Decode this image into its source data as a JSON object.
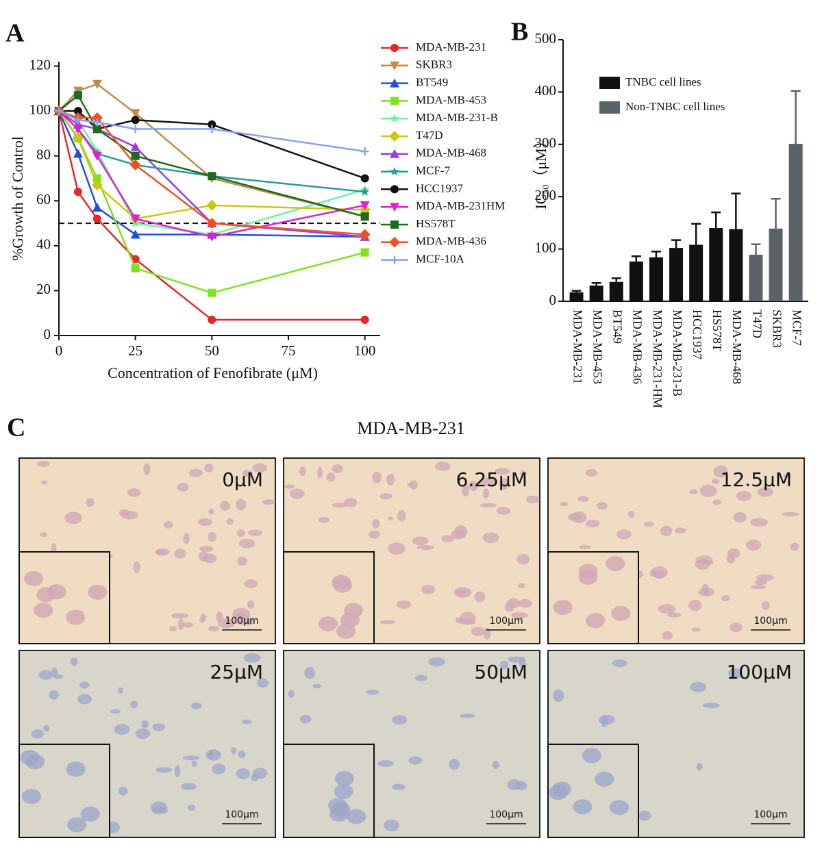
{
  "chart_data": [
    {
      "type": "line",
      "panel_label": "A",
      "x_label": "Concentration of Fenofibrate (μM)",
      "y_label": "%Growth of Control",
      "x": [
        0,
        6.25,
        12.5,
        25,
        50,
        100
      ],
      "xlim": [
        0,
        105
      ],
      "xticks": [
        0,
        25,
        50,
        75,
        100
      ],
      "ylim": [
        0,
        122
      ],
      "yticks": [
        0,
        20,
        40,
        60,
        80,
        100,
        120
      ],
      "reference_line": 50,
      "series": [
        {
          "name": "MDA-MB-231",
          "color": "#e8262a",
          "marker": "circle",
          "values": [
            100,
            64,
            52,
            34,
            7,
            7
          ]
        },
        {
          "name": "SKBR3",
          "color": "#c08a4a",
          "marker": "triangle-down",
          "values": [
            100,
            109,
            112,
            99,
            70,
            53
          ]
        },
        {
          "name": "BT549",
          "color": "#1f4fe0",
          "marker": "triangle",
          "values": [
            100,
            81,
            57,
            45,
            45,
            44
          ]
        },
        {
          "name": "MDA-MB-453",
          "color": "#7ce31c",
          "marker": "square",
          "values": [
            100,
            88,
            70,
            30,
            19,
            37
          ]
        },
        {
          "name": "MDA-MB-231-B",
          "color": "#70f0a0",
          "marker": "star",
          "values": [
            100,
            96,
            82,
            50,
            45,
            65
          ]
        },
        {
          "name": "T47D",
          "color": "#c8c814",
          "marker": "diamond",
          "values": [
            100,
            88,
            67,
            52,
            58,
            56
          ]
        },
        {
          "name": "MDA-MB-468",
          "color": "#9a3fe0",
          "marker": "triangle",
          "values": [
            100,
            94,
            92,
            84,
            50,
            44
          ]
        },
        {
          "name": "MCF-7",
          "color": "#2a9a9a",
          "marker": "star",
          "values": [
            100,
            92,
            81,
            76,
            71,
            64
          ]
        },
        {
          "name": "HCC1937",
          "color": "#111111",
          "marker": "circle",
          "values": [
            100,
            100,
            92,
            96,
            94,
            70
          ]
        },
        {
          "name": "MDA-MB-231HM",
          "color": "#e020d0",
          "marker": "triangle-down",
          "values": [
            100,
            92,
            80,
            52,
            44,
            58
          ]
        },
        {
          "name": "HS578T",
          "color": "#1e6a1e",
          "marker": "square",
          "values": [
            100,
            107,
            92,
            80,
            71,
            53
          ]
        },
        {
          "name": "MDA-MB-436",
          "color": "#f05020",
          "marker": "diamond",
          "values": [
            100,
            97,
            97,
            76,
            50,
            45
          ]
        },
        {
          "name": "MCF-10A",
          "color": "#8aa0f0",
          "marker": "plus",
          "values": [
            100,
            96,
            95,
            92,
            92,
            82
          ]
        }
      ]
    },
    {
      "type": "bar",
      "panel_label": "B",
      "y_label": {
        "main": "IC",
        "sub": "50",
        "unit": "（μM）"
      },
      "categories": [
        "MDA-MB-231",
        "MDA-MB-453",
        "BT549",
        "MDA-MB-436",
        "MDA-MB-231-HM",
        "MDA-MB-231-B",
        "HCC1937",
        "HS578T",
        "MDA-MB-468",
        "T47D",
        "SKBR3",
        "MCF-7"
      ],
      "ylim": [
        0,
        500
      ],
      "yticks": [
        0,
        100,
        200,
        300,
        400,
        500
      ],
      "series": [
        {
          "name": "TNBC cell lines",
          "color": "#111111",
          "values": [
            17,
            30,
            37,
            76,
            84,
            102,
            108,
            140,
            138,
            null,
            null,
            null
          ],
          "errors": [
            3,
            5,
            7,
            10,
            11,
            15,
            40,
            30,
            68,
            null,
            null,
            null
          ]
        },
        {
          "name": "Non-TNBC cell lines",
          "color": "#5a6268",
          "values": [
            null,
            null,
            null,
            null,
            null,
            null,
            null,
            null,
            null,
            89,
            139,
            301
          ],
          "errors": [
            null,
            null,
            null,
            null,
            null,
            null,
            null,
            null,
            null,
            20,
            57,
            101
          ]
        }
      ]
    }
  ],
  "panel_c": {
    "label": "C",
    "title": "MDA-MB-231",
    "images": [
      {
        "label": "0μM",
        "scale": "100μm"
      },
      {
        "label": "6.25μM",
        "scale": "100μm"
      },
      {
        "label": "12.5μM",
        "scale": "100μm"
      },
      {
        "label": "25μM",
        "scale": "100μm"
      },
      {
        "label": "50μM",
        "scale": "100μm"
      },
      {
        "label": "100μM",
        "scale": "100μm"
      }
    ]
  }
}
